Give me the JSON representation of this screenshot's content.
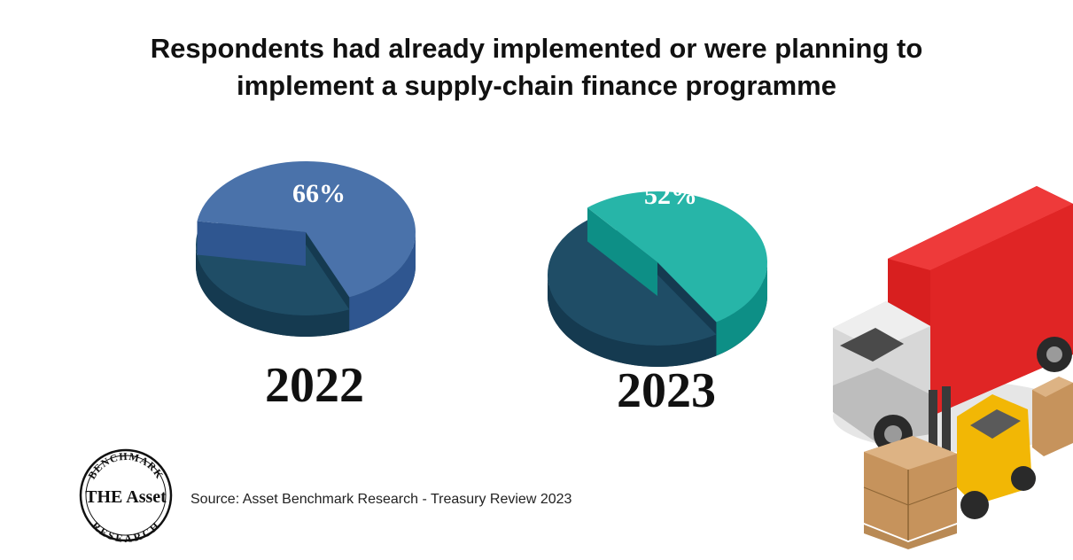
{
  "title": {
    "line1": "Respondents had already implemented or were planning to",
    "line2": "implement a supply-chain finance programme"
  },
  "source": "Source: Asset Benchmark Research - Treasury Review 2023",
  "logo": {
    "top_text": "BENCHMARK",
    "main_text": "THE Asset",
    "bottom_text": "RESEARCH"
  },
  "colors": {
    "pie_2022_main": "#4a72aa",
    "pie_2022_side": "#2f5690",
    "pie_2023_main": "#27b5a8",
    "pie_2023_side": "#0d8f86",
    "pie_rest_top": "#1f4d66",
    "pie_rest_side": "#153a50"
  },
  "chart_data": [
    {
      "type": "pie",
      "label": "2022",
      "slices": [
        {
          "value": 66,
          "display": "66%"
        },
        {
          "value": 34
        }
      ]
    },
    {
      "type": "pie",
      "label": "2023",
      "slices": [
        {
          "value": 52,
          "display": "52%"
        },
        {
          "value": 48
        }
      ]
    }
  ],
  "illustration": "truck-and-forklift"
}
